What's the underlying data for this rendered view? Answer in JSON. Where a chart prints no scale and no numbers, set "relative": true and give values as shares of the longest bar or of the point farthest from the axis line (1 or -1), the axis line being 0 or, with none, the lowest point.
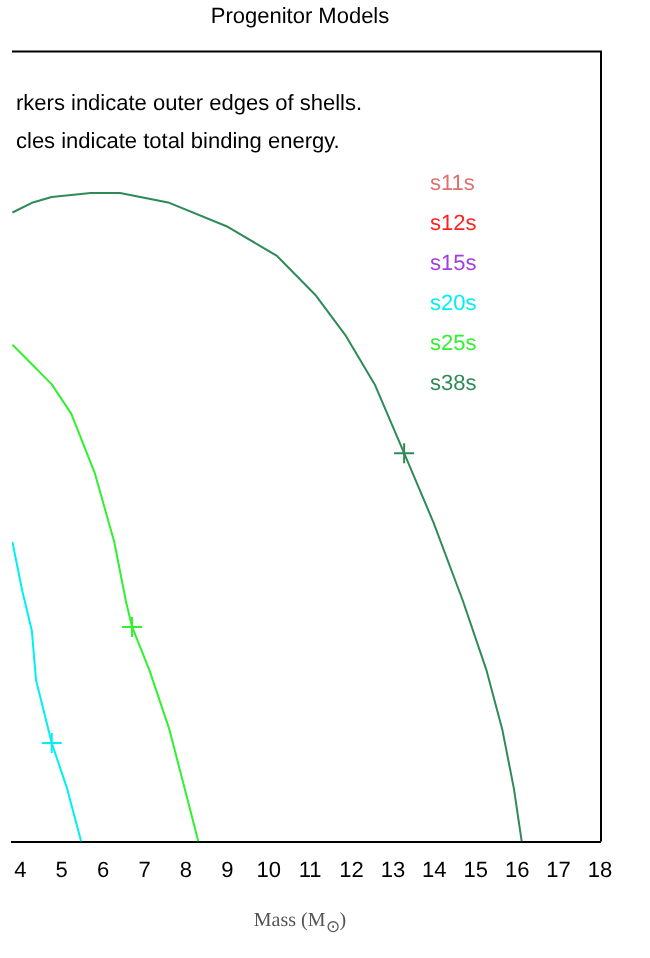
{
  "chart_data": {
    "type": "line",
    "title": "Progenitor Models",
    "xlabel": "Mass (M$_{⊙}$)",
    "relative": true,
    "xlim": [
      3.8,
      18
    ],
    "xticks": [
      4,
      5,
      6,
      7,
      8,
      9,
      10,
      11,
      12,
      13,
      14,
      15,
      16,
      17,
      18
    ],
    "grid": false,
    "legend": "top right",
    "marker": "none",
    "line_style": "solid",
    "annotations": [
      "rkers indicate outer edges of shells.",
      "cles indicate total binding energy."
    ],
    "series": [
      {
        "name": "s11s",
        "color": "#e07070"
      },
      {
        "name": "s12s",
        "color": "#ff2020"
      },
      {
        "name": "s15s",
        "color": "#a040e0"
      },
      {
        "name": "s20s",
        "color": "#00f0f0",
        "x": [
          3.81,
          4.05,
          4.28,
          4.38,
          4.76,
          5.13,
          5.47
        ],
        "values": [
          0.462,
          0.386,
          0.325,
          0.249,
          0.152,
          0.082,
          0
        ]
      },
      {
        "name": "s25s",
        "color": "#30f030",
        "x": [
          3.81,
          4.28,
          4.76,
          5.23,
          5.8,
          6.27,
          6.55,
          6.7,
          7.12,
          7.6,
          7.97,
          8.3
        ],
        "values": [
          0.766,
          0.736,
          0.705,
          0.66,
          0.568,
          0.462,
          0.371,
          0.331,
          0.264,
          0.173,
          0.082,
          0
        ]
      },
      {
        "name": "s38s",
        "color": "#2e8b57",
        "x": [
          3.81,
          4.28,
          4.76,
          5.7,
          6.41,
          7.6,
          9.01,
          10.2,
          11.14,
          11.85,
          12.56,
          13.27,
          13.98,
          14.69,
          15.26,
          15.64,
          15.92,
          16.11
        ],
        "values": [
          0.97,
          0.985,
          0.994,
          1,
          1,
          0.985,
          0.948,
          0.903,
          0.842,
          0.781,
          0.705,
          0.599,
          0.492,
          0.371,
          0.264,
          0.173,
          0.082,
          0
        ]
      },
      {
        "type": "scatter",
        "color": "#00f0f0",
        "marker": "cross",
        "x": [
          4.76
        ],
        "values": [
          0.152
        ]
      },
      {
        "type": "scatter",
        "color": "#30f030",
        "marker": "cross",
        "x": [
          6.7
        ],
        "values": [
          0.331
        ]
      },
      {
        "type": "scatter",
        "color": "#2e8b57",
        "marker": "cross",
        "x": [
          13.27
        ],
        "values": [
          0.599
        ]
      }
    ]
  }
}
